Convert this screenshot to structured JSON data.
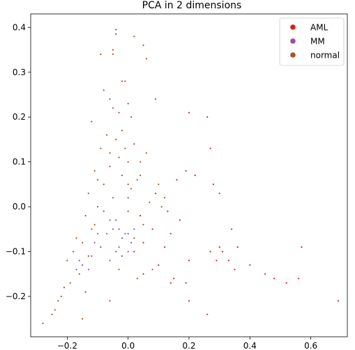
{
  "chart_data": {
    "type": "scatter",
    "title": "PCA in 2 dimensions",
    "xlabel": "",
    "ylabel": "",
    "xlim": [
      -0.32,
      0.72
    ],
    "ylim": [
      -0.29,
      0.43
    ],
    "xticks": [
      -0.2,
      0.0,
      0.2,
      0.4,
      0.6
    ],
    "xtick_labels": [
      "−0.2",
      "0.0",
      "0.2",
      "0.4",
      "0.6"
    ],
    "yticks": [
      -0.2,
      -0.1,
      0.0,
      0.1,
      0.2,
      0.3,
      0.4
    ],
    "ytick_labels": [
      "−0.2",
      "−0.1",
      "0.0",
      "0.1",
      "0.2",
      "0.3",
      "0.4"
    ],
    "grid": false,
    "legend_position": "top-right",
    "series": [
      {
        "name": "AML",
        "color": "#e41a1c",
        "points": [
          [
            0.3,
            -0.09
          ],
          [
            0.33,
            -0.12
          ],
          [
            0.4,
            -0.13
          ],
          [
            0.45,
            -0.15
          ],
          [
            0.48,
            -0.16
          ],
          [
            0.52,
            -0.17
          ],
          [
            0.56,
            -0.16
          ],
          [
            0.57,
            -0.09
          ],
          [
            0.69,
            -0.21
          ],
          [
            0.36,
            -0.09
          ],
          [
            0.34,
            -0.05
          ],
          [
            0.3,
            0.03
          ],
          [
            0.28,
            0.05
          ],
          [
            0.27,
            0.13
          ],
          [
            0.26,
            0.2
          ],
          [
            0.2,
            0.21
          ],
          [
            0.22,
            0.07
          ],
          [
            0.19,
            0.08
          ],
          [
            0.16,
            0.06
          ],
          [
            0.19,
            -0.17
          ],
          [
            0.2,
            -0.21
          ],
          [
            0.26,
            -0.24
          ],
          [
            0.14,
            -0.17
          ],
          [
            0.15,
            -0.16
          ],
          [
            0.2,
            -0.12
          ],
          [
            0.27,
            -0.1
          ],
          [
            0.29,
            -0.12
          ],
          [
            0.31,
            -0.1
          ],
          [
            0.35,
            -0.14
          ],
          [
            0.05,
            -0.15
          ],
          [
            0.1,
            -0.13
          ],
          [
            0.12,
            -0.09
          ],
          [
            0.14,
            -0.06
          ],
          [
            0.13,
            -0.01
          ],
          [
            0.17,
            -0.03
          ],
          [
            0.08,
            -0.05
          ],
          [
            0.05,
            -0.08
          ],
          [
            0.02,
            -0.1
          ],
          [
            0.04,
            -0.02
          ],
          [
            0.09,
            0.03
          ]
        ]
      },
      {
        "name": "MM",
        "color": "#984ea3",
        "points": [
          [
            -0.03,
            -0.09
          ],
          [
            -0.02,
            -0.07
          ],
          [
            -0.01,
            -0.06
          ],
          [
            0.0,
            -0.06
          ],
          [
            0.01,
            -0.08
          ],
          [
            -0.04,
            -0.1
          ],
          [
            -0.03,
            -0.05
          ],
          [
            -0.02,
            -0.11
          ],
          [
            0.0,
            -0.1
          ],
          [
            0.02,
            -0.05
          ],
          [
            -0.15,
            -0.13
          ],
          [
            -0.16,
            -0.12
          ],
          [
            -0.17,
            -0.14
          ],
          [
            -0.13,
            -0.14
          ],
          [
            -0.12,
            -0.11
          ],
          [
            -0.11,
            -0.08
          ],
          [
            -0.1,
            -0.06
          ],
          [
            -0.06,
            -0.03
          ],
          [
            -0.05,
            -0.05
          ],
          [
            -0.06,
            -0.12
          ]
        ]
      },
      {
        "name": "normal",
        "color": "#a65628",
        "points": [
          [
            -0.04,
            0.395
          ],
          [
            -0.04,
            0.385
          ],
          [
            0.02,
            0.38
          ],
          [
            -0.05,
            0.35
          ],
          [
            -0.05,
            0.34
          ],
          [
            0.05,
            0.36
          ],
          [
            0.06,
            0.33
          ],
          [
            -0.09,
            0.34
          ],
          [
            -0.02,
            0.28
          ],
          [
            -0.01,
            0.28
          ],
          [
            -0.08,
            0.26
          ],
          [
            -0.06,
            0.24
          ],
          [
            0.0,
            0.23
          ],
          [
            0.09,
            0.24
          ],
          [
            -0.05,
            0.22
          ],
          [
            -0.03,
            0.21
          ],
          [
            0.01,
            0.2
          ],
          [
            -0.12,
            0.19
          ],
          [
            -0.07,
            0.16
          ],
          [
            -0.04,
            0.15
          ],
          [
            0.02,
            0.14
          ],
          [
            -0.09,
            0.13
          ],
          [
            0.06,
            0.12
          ],
          [
            -0.03,
            0.11
          ],
          [
            0.0,
            0.1
          ],
          [
            -0.06,
            0.09
          ],
          [
            -0.11,
            0.08
          ],
          [
            -0.02,
            0.07
          ],
          [
            0.03,
            0.06
          ],
          [
            -0.08,
            0.05
          ],
          [
            0.01,
            0.04
          ],
          [
            -0.13,
            0.03
          ],
          [
            -0.05,
            0.02
          ],
          [
            0.07,
            0.01
          ],
          [
            -0.1,
            0.0
          ],
          [
            0.0,
            -0.01
          ],
          [
            -0.14,
            -0.02
          ],
          [
            -0.04,
            -0.03
          ],
          [
            0.05,
            -0.04
          ],
          [
            -0.12,
            -0.05
          ],
          [
            -0.07,
            -0.06
          ],
          [
            0.02,
            -0.07
          ],
          [
            -0.15,
            -0.08
          ],
          [
            -0.09,
            -0.09
          ],
          [
            -0.18,
            -0.1
          ],
          [
            -0.13,
            -0.11
          ],
          [
            -0.2,
            -0.12
          ],
          [
            -0.16,
            -0.15
          ],
          [
            -0.19,
            -0.17
          ],
          [
            -0.21,
            -0.18
          ],
          [
            -0.22,
            -0.2
          ],
          [
            -0.23,
            -0.21
          ],
          [
            -0.24,
            -0.23
          ],
          [
            -0.25,
            -0.24
          ],
          [
            -0.28,
            -0.26
          ],
          [
            -0.15,
            -0.25
          ],
          [
            -0.06,
            -0.21
          ],
          [
            0.03,
            -0.16
          ],
          [
            0.08,
            -0.14
          ],
          [
            -0.02,
            0.17
          ],
          [
            0.04,
            0.1
          ],
          [
            -0.1,
            0.06
          ],
          [
            0.1,
            0.05
          ],
          [
            0.0,
            0.02
          ],
          [
            -0.08,
            -0.01
          ],
          [
            0.04,
            0.07
          ],
          [
            -0.06,
            0.12
          ],
          [
            -0.01,
            0.13
          ],
          [
            -0.11,
            -0.04
          ],
          [
            -0.17,
            -0.07
          ],
          [
            0.11,
            0.0
          ],
          [
            0.12,
            0.02
          ],
          [
            -0.03,
            -0.14
          ],
          [
            -0.14,
            -0.19
          ],
          [
            0.0,
            0.05
          ]
        ]
      }
    ]
  }
}
